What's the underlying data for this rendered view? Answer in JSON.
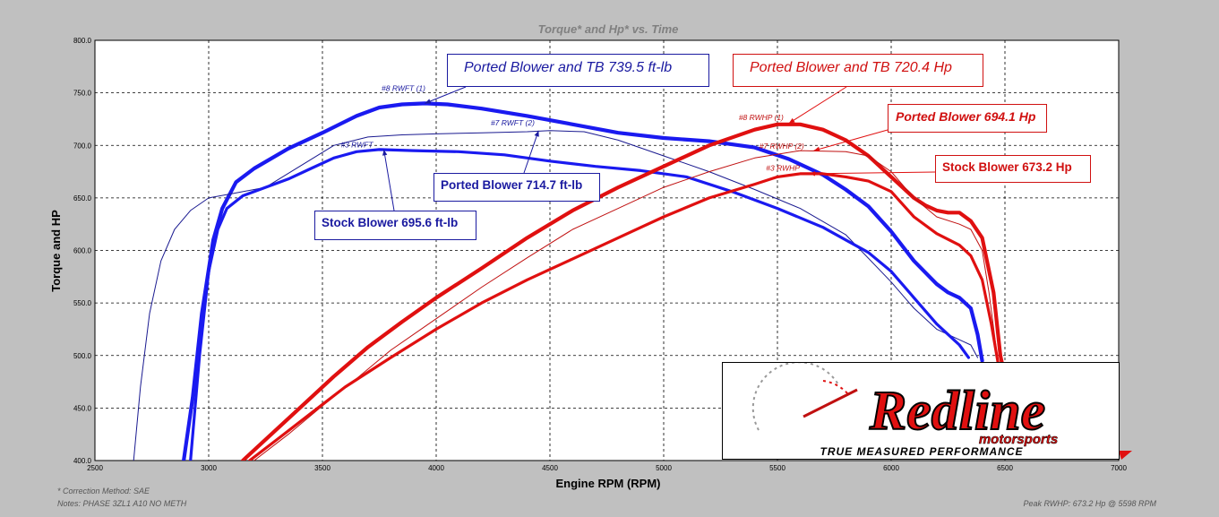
{
  "chart_data": {
    "type": "line",
    "title": "Torque* and Hp* vs. Time",
    "xlabel": "Engine RPM (RPM)",
    "ylabel": "Torque and HP",
    "xlim": [
      2500,
      7000
    ],
    "ylim": [
      400,
      800
    ],
    "x_ticks": [
      "2500",
      "3000",
      "3500",
      "4000",
      "4500",
      "5000",
      "5500",
      "6000",
      "6500",
      "7000"
    ],
    "y_ticks": [
      "400.0",
      "450.0",
      "500.0",
      "550.0",
      "600.0",
      "650.0",
      "700.0",
      "750.0",
      "800.0"
    ],
    "grid": true,
    "series": [
      {
        "name": "#8 RWFT (1)",
        "color": "#1a1af0",
        "width": 4.2,
        "x": [
          2890,
          2930,
          2970,
          3020,
          3060,
          3120,
          3200,
          3350,
          3500,
          3650,
          3750,
          3850,
          3950,
          4050,
          4200,
          4400,
          4600,
          4800,
          5000,
          5200,
          5400,
          5550,
          5700,
          5800,
          5900,
          6000,
          6100,
          6200,
          6250,
          6300,
          6350,
          6380,
          6400
        ],
        "y": [
          400,
          460,
          540,
          610,
          640,
          665,
          678,
          697,
          712,
          728,
          736,
          739,
          740,
          739,
          735,
          728,
          720,
          712,
          707,
          704,
          698,
          687,
          672,
          658,
          642,
          618,
          590,
          568,
          560,
          555,
          545,
          520,
          495
        ]
      },
      {
        "name": "#7 RWFT (2)",
        "color": "#1a1a90",
        "width": 1,
        "x": [
          2670,
          2700,
          2740,
          2790,
          2850,
          2920,
          3000,
          3100,
          3250,
          3400,
          3550,
          3700,
          3850,
          4000,
          4200,
          4400,
          4500,
          4650,
          4800,
          5000,
          5200,
          5400,
          5600,
          5800,
          6000,
          6100,
          6200,
          6300,
          6350,
          6380
        ],
        "y": [
          400,
          470,
          540,
          590,
          620,
          638,
          650,
          654,
          660,
          680,
          700,
          708,
          710,
          711,
          712,
          713,
          714,
          713,
          705,
          690,
          675,
          658,
          640,
          615,
          570,
          545,
          525,
          515,
          510,
          498
        ]
      },
      {
        "name": "#3 RWFT",
        "color": "#1a1af0",
        "width": 3.2,
        "x": [
          2920,
          2960,
          3000,
          3040,
          3080,
          3150,
          3250,
          3350,
          3450,
          3550,
          3650,
          3750,
          3900,
          4100,
          4300,
          4500,
          4700,
          4900,
          5100,
          5300,
          5500,
          5700,
          5900,
          6000,
          6100,
          6200,
          6300,
          6340
        ],
        "y": [
          400,
          500,
          580,
          620,
          640,
          652,
          660,
          668,
          678,
          688,
          694,
          696,
          695,
          694,
          691,
          685,
          680,
          676,
          670,
          656,
          640,
          622,
          598,
          580,
          555,
          530,
          510,
          498
        ]
      },
      {
        "name": "#8 RWHP (1)",
        "color": "#e01010",
        "width": 4.2,
        "x": [
          3150,
          3250,
          3400,
          3550,
          3700,
          3850,
          4000,
          4200,
          4400,
          4600,
          4800,
          5000,
          5200,
          5400,
          5500,
          5600,
          5700,
          5800,
          5900,
          6000,
          6100,
          6150,
          6200,
          6250,
          6300,
          6350,
          6400,
          6450,
          6480,
          6500
        ],
        "y": [
          400,
          420,
          450,
          480,
          508,
          532,
          555,
          583,
          612,
          638,
          660,
          680,
          700,
          715,
          720,
          720,
          715,
          705,
          690,
          670,
          650,
          643,
          638,
          636,
          636,
          628,
          612,
          560,
          500,
          480
        ]
      },
      {
        "name": "#7 RWHP (2)",
        "color": "#c01010",
        "width": 1,
        "x": [
          3200,
          3350,
          3500,
          3650,
          3800,
          4000,
          4200,
          4400,
          4600,
          4800,
          5000,
          5200,
          5400,
          5600,
          5800,
          5900,
          6000,
          6100,
          6200,
          6300,
          6350,
          6400,
          6430,
          6460
        ],
        "y": [
          400,
          425,
          452,
          478,
          505,
          535,
          565,
          593,
          620,
          640,
          660,
          675,
          688,
          695,
          694,
          690,
          675,
          650,
          632,
          625,
          620,
          600,
          560,
          510
        ]
      },
      {
        "name": "#3 RWHP",
        "color": "#e01010",
        "width": 3.2,
        "x": [
          3180,
          3300,
          3450,
          3600,
          3800,
          4000,
          4200,
          4400,
          4600,
          4800,
          5000,
          5200,
          5400,
          5500,
          5600,
          5700,
          5800,
          5900,
          6000,
          6100,
          6200,
          6300,
          6350,
          6400,
          6440,
          6480
        ],
        "y": [
          400,
          420,
          445,
          470,
          498,
          525,
          550,
          572,
          592,
          612,
          632,
          650,
          663,
          670,
          673,
          673,
          670,
          666,
          656,
          632,
          616,
          605,
          595,
          572,
          530,
          480
        ]
      }
    ],
    "series_tags": [
      "#8 RWFT (1)",
      "#7 RWFT (2)",
      "#3 RWFT",
      "#8 RWHP (1)",
      "#7 RWHP (2)",
      "#3 RWHP"
    ],
    "annotations": {
      "tq_ported_tb": "Ported Blower and TB 739.5 ft-lb",
      "tq_ported": "Ported Blower 714.7 ft-lb",
      "tq_stock": "Stock Blower 695.6 ft-lb",
      "hp_ported_tb": "Ported Blower and TB 720.4 Hp",
      "hp_ported": "Ported Blower 694.1 Hp",
      "hp_stock": "Stock Blower 673.2 Hp"
    }
  },
  "footer": {
    "correction": "* Correction Method: SAE",
    "notes": "Notes: PHASE 3ZL1 A10 NO METH",
    "peak": "Peak RWHP: 673.2 Hp @ 5598 RPM"
  },
  "logo": {
    "name": "Redline",
    "sub": "motorsports",
    "tagline": "TRUE MEASURED PERFORMANCE"
  },
  "colors": {
    "torque": "#1a1af0",
    "hp": "#e01010",
    "plot_bg": "#ffffff",
    "page_bg": "#c0c0c0"
  }
}
